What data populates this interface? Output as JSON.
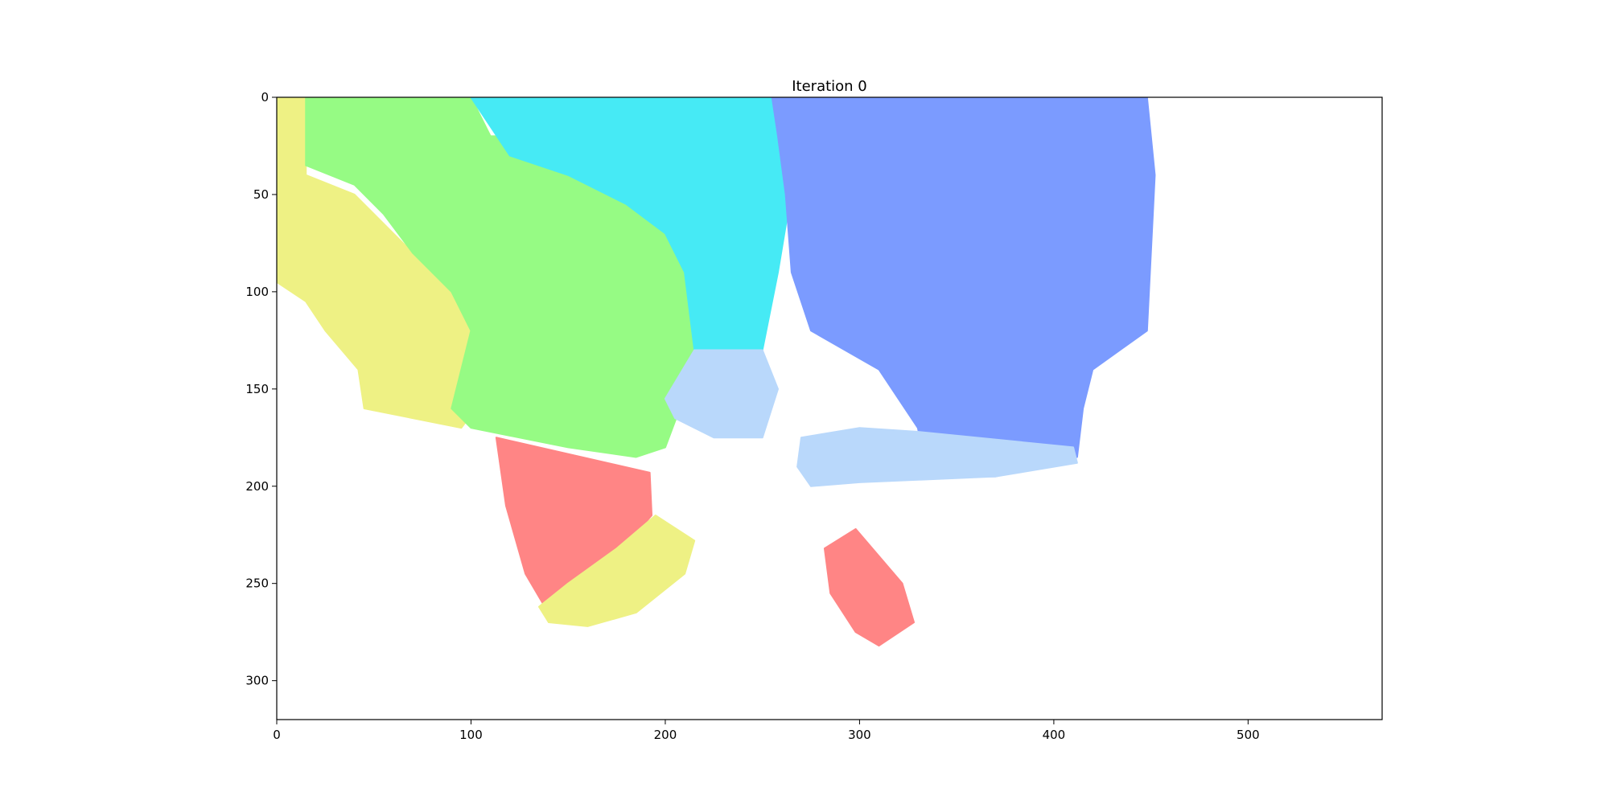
{
  "chart_data": {
    "type": "heatmap",
    "title": "Iteration 0",
    "xlabel": "",
    "ylabel": "",
    "xlim": [
      0,
      569
    ],
    "ylim": [
      320,
      0
    ],
    "x_ticks": [
      0,
      100,
      200,
      300,
      400,
      500
    ],
    "y_ticks": [
      0,
      50,
      100,
      150,
      200,
      250,
      300
    ],
    "x_tick_labels": [
      "0",
      "100",
      "200",
      "300",
      "400",
      "500"
    ],
    "y_tick_labels": [
      "0",
      "50",
      "100",
      "150",
      "200",
      "250",
      "300"
    ],
    "grid": false,
    "legend": "none",
    "regions": [
      {
        "name": "yellow",
        "color": "#eef184",
        "polygon": [
          [
            0,
            0
          ],
          [
            15,
            0
          ],
          [
            15,
            40
          ],
          [
            40,
            50
          ],
          [
            60,
            70
          ],
          [
            80,
            90
          ],
          [
            100,
            110
          ],
          [
            110,
            150
          ],
          [
            95,
            170
          ],
          [
            45,
            160
          ],
          [
            42,
            140
          ],
          [
            25,
            120
          ],
          [
            15,
            105
          ],
          [
            0,
            95
          ]
        ]
      },
      {
        "name": "green",
        "color": "#96fb84",
        "polygon": [
          [
            15,
            0
          ],
          [
            100,
            0
          ],
          [
            110,
            20
          ],
          [
            140,
            20
          ],
          [
            190,
            50
          ],
          [
            215,
            80
          ],
          [
            220,
            110
          ],
          [
            215,
            140
          ],
          [
            200,
            180
          ],
          [
            185,
            185
          ],
          [
            150,
            180
          ],
          [
            100,
            170
          ],
          [
            90,
            160
          ],
          [
            100,
            120
          ],
          [
            90,
            100
          ],
          [
            70,
            80
          ],
          [
            55,
            60
          ],
          [
            40,
            45
          ],
          [
            15,
            35
          ]
        ]
      },
      {
        "name": "cyan",
        "color": "#46eaf5",
        "polygon": [
          [
            100,
            0
          ],
          [
            255,
            0
          ],
          [
            262,
            30
          ],
          [
            263,
            60
          ],
          [
            258,
            90
          ],
          [
            250,
            130
          ],
          [
            215,
            130
          ],
          [
            210,
            90
          ],
          [
            200,
            70
          ],
          [
            180,
            55
          ],
          [
            150,
            40
          ],
          [
            120,
            30
          ],
          [
            110,
            15
          ]
        ]
      },
      {
        "name": "blue",
        "color": "#7b9bff",
        "polygon": [
          [
            255,
            0
          ],
          [
            448,
            0
          ],
          [
            452,
            40
          ],
          [
            450,
            80
          ],
          [
            448,
            120
          ],
          [
            420,
            140
          ],
          [
            415,
            160
          ],
          [
            412,
            185
          ],
          [
            370,
            195
          ],
          [
            335,
            195
          ],
          [
            330,
            170
          ],
          [
            310,
            140
          ],
          [
            275,
            120
          ],
          [
            265,
            90
          ],
          [
            262,
            50
          ],
          [
            258,
            20
          ]
        ]
      },
      {
        "name": "lightblue-left",
        "color": "#b9d8fb",
        "polygon": [
          [
            215,
            130
          ],
          [
            250,
            130
          ],
          [
            258,
            150
          ],
          [
            250,
            175
          ],
          [
            225,
            175
          ],
          [
            205,
            165
          ],
          [
            200,
            155
          ]
        ]
      },
      {
        "name": "lightblue-right",
        "color": "#b9d8fb",
        "polygon": [
          [
            270,
            175
          ],
          [
            300,
            170
          ],
          [
            330,
            172
          ],
          [
            360,
            175
          ],
          [
            410,
            180
          ],
          [
            412,
            188
          ],
          [
            370,
            195
          ],
          [
            300,
            198
          ],
          [
            275,
            200
          ],
          [
            268,
            190
          ]
        ]
      },
      {
        "name": "red-left",
        "color": "#ff8585",
        "polygon": [
          [
            113,
            175
          ],
          [
            192,
            193
          ],
          [
            193,
            215
          ],
          [
            180,
            230
          ],
          [
            150,
            255
          ],
          [
            138,
            262
          ],
          [
            128,
            245
          ],
          [
            118,
            210
          ]
        ]
      },
      {
        "name": "yellow-lower",
        "color": "#eef184",
        "polygon": [
          [
            195,
            215
          ],
          [
            215,
            228
          ],
          [
            210,
            245
          ],
          [
            185,
            265
          ],
          [
            160,
            272
          ],
          [
            140,
            270
          ],
          [
            135,
            262
          ],
          [
            150,
            250
          ],
          [
            175,
            232
          ]
        ]
      },
      {
        "name": "red-right",
        "color": "#ff8585",
        "polygon": [
          [
            282,
            232
          ],
          [
            298,
            222
          ],
          [
            322,
            250
          ],
          [
            328,
            270
          ],
          [
            310,
            282
          ],
          [
            298,
            275
          ],
          [
            285,
            255
          ]
        ]
      }
    ]
  }
}
